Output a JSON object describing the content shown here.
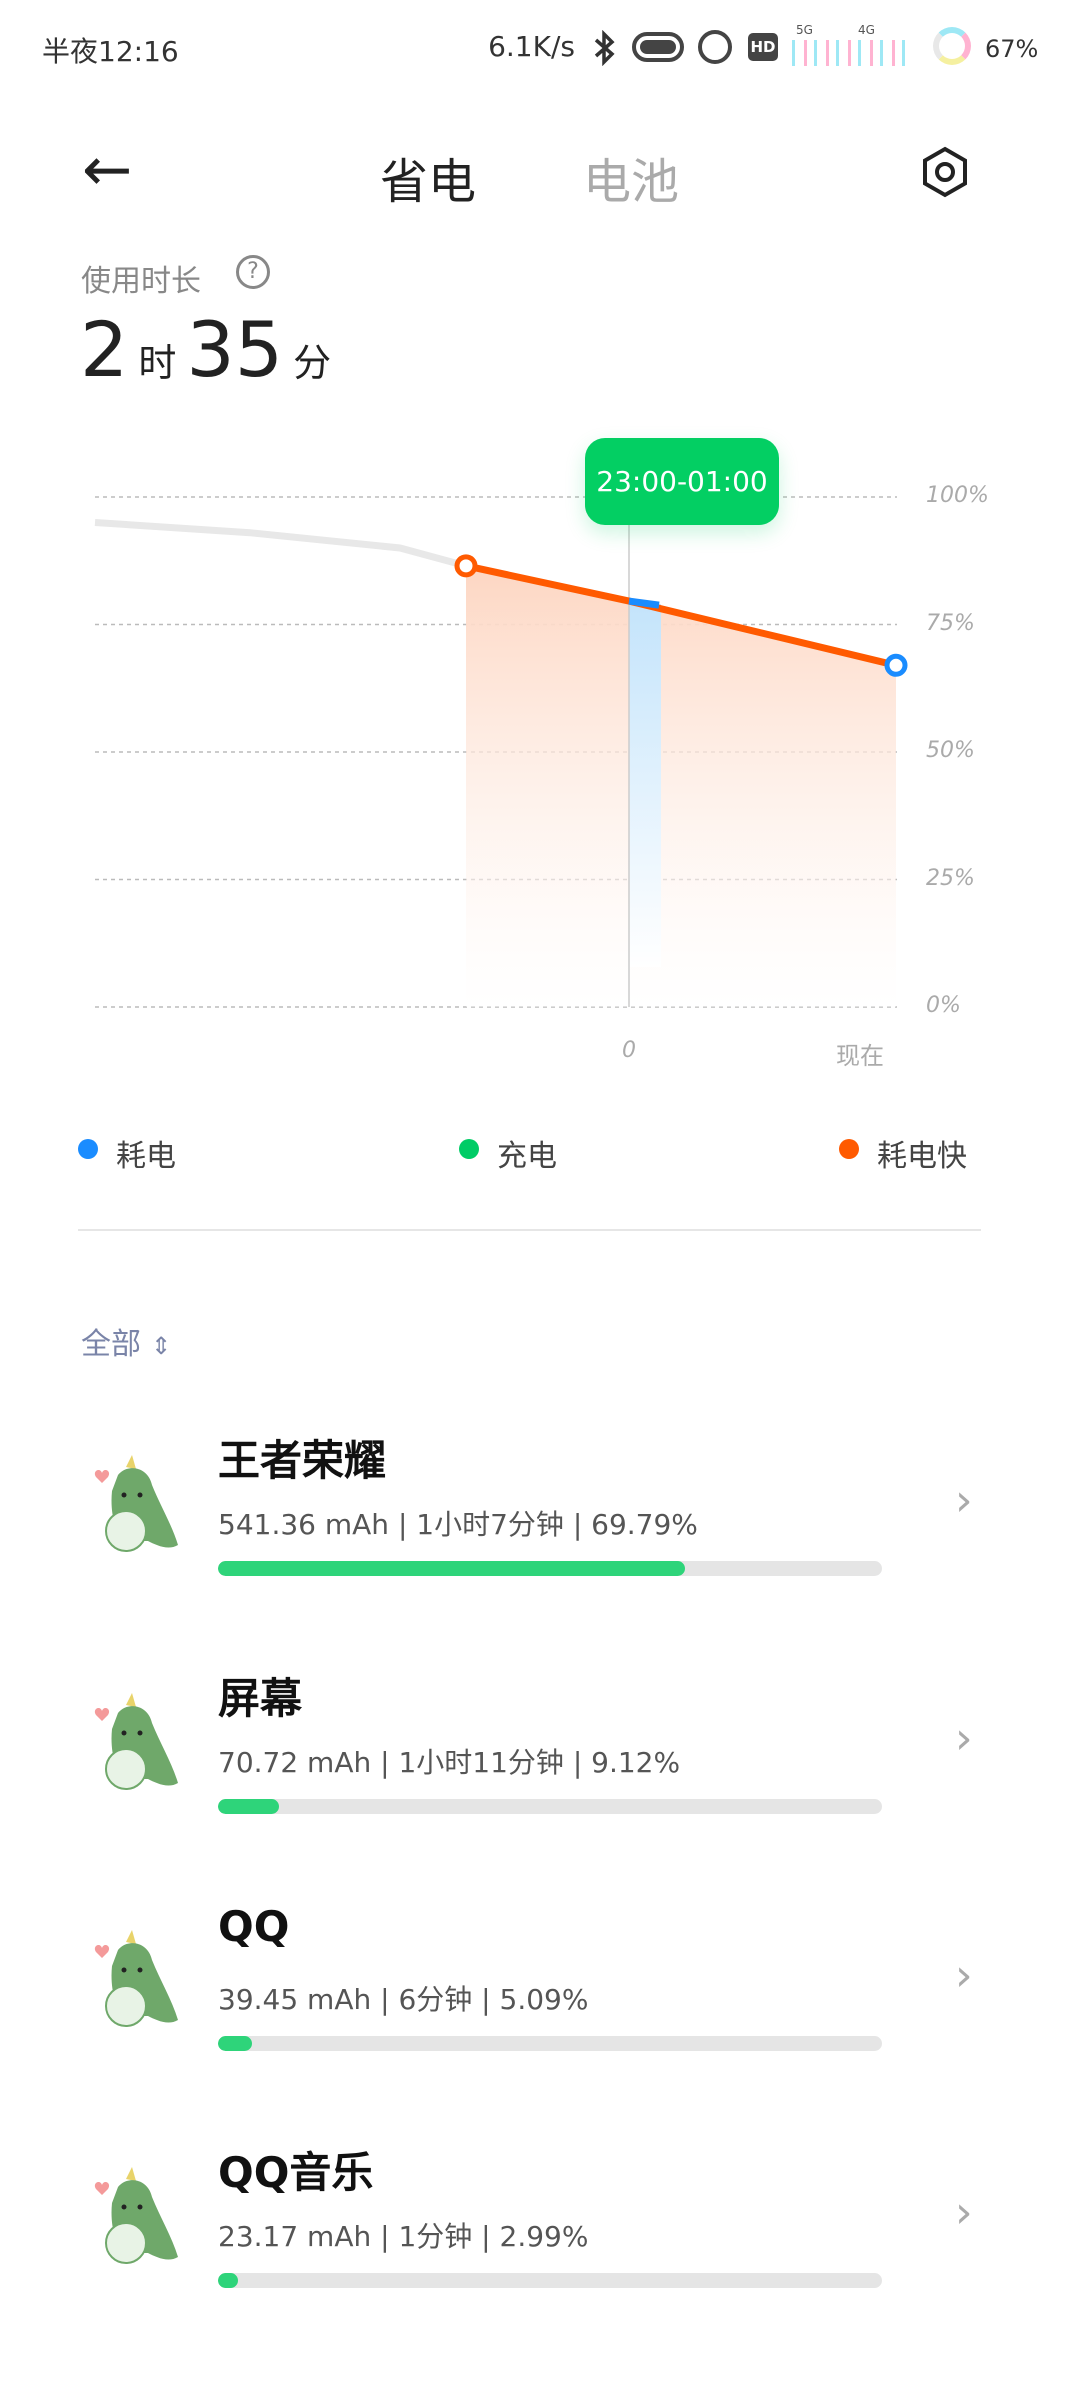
{
  "status_bar": {
    "time": "半夜12:16",
    "network_speed": "6.1K/s",
    "signal_5g": "5G",
    "signal_4g": "4G",
    "battery": "67%",
    "icons": [
      "bluetooth-icon",
      "vpn-icon",
      "alarm-icon",
      "hd-icon",
      "signal-icon",
      "battery-ring-icon"
    ]
  },
  "header": {
    "tabs": [
      {
        "label": "省电",
        "active": true
      },
      {
        "label": "电池",
        "active": false
      }
    ]
  },
  "usage": {
    "label": "使用时长",
    "hours": "2",
    "hours_unit": "时",
    "minutes": "35",
    "minutes_unit": "分"
  },
  "chart_data": {
    "type": "line",
    "ylim": [
      0,
      100
    ],
    "y_ticks": [
      "100%",
      "75%",
      "50%",
      "25%",
      "0%"
    ],
    "x_ticks": [
      "0",
      "现在"
    ],
    "tooltip": "23:00-01:00",
    "grid": true,
    "series": [
      {
        "name": "history",
        "color": "#e8e8e8",
        "values": [
          95,
          93,
          90,
          86.5
        ]
      },
      {
        "name": "耗电快",
        "color": "#ff5a00",
        "values": [
          86.5,
          79.6,
          67
        ]
      }
    ]
  },
  "legend": [
    {
      "label": "耗电",
      "color": "#1a8cff"
    },
    {
      "label": "充电",
      "color": "#00cc66"
    },
    {
      "label": "耗电快",
      "color": "#ff5a00"
    }
  ],
  "filter": {
    "label": "全部"
  },
  "apps": [
    {
      "name": "王者荣耀",
      "detail": "541.36 mAh | 1小时7分钟 | 69.79%",
      "percent": 69.79
    },
    {
      "name": "屏幕",
      "detail": "70.72 mAh | 1小时11分钟 | 9.12%",
      "percent": 9.12
    },
    {
      "name": "QQ",
      "detail": "39.45 mAh | 6分钟 | 5.09%",
      "percent": 5.09
    },
    {
      "name": "QQ音乐",
      "detail": "23.17 mAh | 1分钟 | 2.99%",
      "percent": 2.99
    }
  ]
}
